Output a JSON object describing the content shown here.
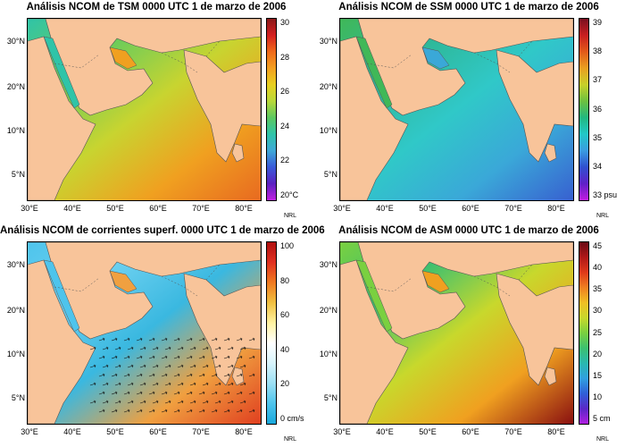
{
  "credit": "NRL",
  "x_labels": [
    "30°E",
    "40°E",
    "50°E",
    "60°E",
    "70°E",
    "80°E"
  ],
  "y_labels": [
    "30°N",
    "20°N",
    "10°N",
    "5°N"
  ],
  "panels": [
    {
      "id": "tsm",
      "title": "Análisis NCOM de TSM 0000 UTC 1 de marzo de 2006",
      "ticks": [
        "30",
        "28",
        "26",
        "24",
        "22",
        "20°C"
      ],
      "colors": [
        "#8a1a1a",
        "#d42020",
        "#ef6a1a",
        "#f3a020",
        "#e8d020",
        "#b8d83a",
        "#5cc860",
        "#2fc4a8",
        "#3fa8d8",
        "#3a5ad8",
        "#5a20c0",
        "#c020e0"
      ],
      "ocean": [
        "#2fc4a8",
        "#6ccc5a",
        "#c8d430",
        "#f0a020",
        "#e86a20"
      ]
    },
    {
      "id": "ssm",
      "title": "Análisis NCOM de SSM 0000 UTC 1 de marzo de 2006",
      "ticks": [
        "39",
        "38",
        "37",
        "36",
        "35",
        "34",
        "33 psu"
      ],
      "colors": [
        "#7a1020",
        "#c81f20",
        "#e25a1a",
        "#eaa020",
        "#c8d02a",
        "#6cc040",
        "#22b880",
        "#22c8c8",
        "#3a9ce0",
        "#3050d0",
        "#6020c8",
        "#c01ee0"
      ],
      "ocean": [
        "#40b858",
        "#2eb898",
        "#30c8c8",
        "#3aa8d8",
        "#3860d0"
      ]
    },
    {
      "id": "corrientes",
      "title": "Análisis NCOM de corrientes superf. 0000 UTC 1 de marzo de 2006",
      "ticks": [
        "100",
        "80",
        "60",
        "40",
        "20",
        "0 cm/s"
      ],
      "colors": [
        "#b01010",
        "#e03020",
        "#f07a20",
        "#f0c040",
        "#fff2a0",
        "#ffffff",
        "#d8f4fc",
        "#9ce0f4",
        "#4ec4ec",
        "#1aa8dc"
      ],
      "ocean": [
        "#4ec4ec",
        "#6cd0f0",
        "#3ab8e0",
        "#f0a040",
        "#e04020"
      ]
    },
    {
      "id": "asm",
      "title": "Análisis NCOM de ASM 0000 UTC 1 de marzo de 2006",
      "ticks": [
        "45",
        "40",
        "35",
        "30",
        "25",
        "20",
        "15",
        "10",
        "5 cm"
      ],
      "colors": [
        "#6a0a14",
        "#b01818",
        "#e03a1a",
        "#f08020",
        "#f0c024",
        "#c8d82c",
        "#7ad040",
        "#3cc070",
        "#2ab8b0",
        "#30a0e0",
        "#3060d8",
        "#5a28c8",
        "#b020e0"
      ],
      "ocean": [
        "#7ad040",
        "#3cc070",
        "#c8d82c",
        "#f0a020",
        "#8a1010"
      ]
    }
  ]
}
